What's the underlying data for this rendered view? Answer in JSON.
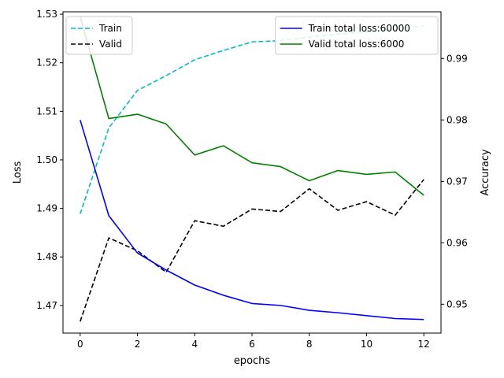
{
  "chart_data": {
    "type": "line",
    "xlabel": "epochs",
    "ylabel_left": "Loss",
    "ylabel_right": "Accuracy",
    "x": [
      0,
      1,
      2,
      3,
      4,
      5,
      6,
      7,
      8,
      9,
      10,
      11,
      12
    ],
    "xlim": [
      -0.6,
      12.6
    ],
    "xticks": [
      0,
      2,
      4,
      6,
      8,
      10,
      12
    ],
    "ylim_left": [
      1.4643,
      1.5305
    ],
    "yticks_left": [
      1.47,
      1.48,
      1.49,
      1.5,
      1.51,
      1.52,
      1.53
    ],
    "ytick_labels_left": [
      "1.47",
      "1.48",
      "1.49",
      "1.50",
      "1.51",
      "1.52",
      "1.53"
    ],
    "ylim_right": [
      0.9453,
      0.9976
    ],
    "yticks_right": [
      0.95,
      0.96,
      0.97,
      0.98,
      0.99
    ],
    "ytick_labels_right": [
      "0.95",
      "0.96",
      "0.97",
      "0.98",
      "0.99"
    ],
    "grid": false,
    "series": [
      {
        "name": "Train",
        "axis": "right",
        "color": "#00bfbf",
        "style": "dashed",
        "values": [
          0.9647,
          0.9787,
          0.9848,
          0.9872,
          0.9898,
          0.9913,
          0.9927,
          0.9929,
          0.9935,
          0.994,
          0.9943,
          0.9948,
          0.9953
        ]
      },
      {
        "name": "Valid",
        "axis": "right",
        "color": "#000000",
        "style": "dashed",
        "values": [
          0.9472,
          0.9608,
          0.9587,
          0.9552,
          0.9636,
          0.9627,
          0.9655,
          0.9651,
          0.9688,
          0.9653,
          0.9667,
          0.9645,
          0.9703
        ]
      },
      {
        "name": "Train total loss:60000",
        "axis": "left",
        "color": "#0000ff",
        "style": "solid",
        "values": [
          1.5082,
          1.4885,
          1.4808,
          1.4773,
          1.4742,
          1.4721,
          1.4704,
          1.47,
          1.469,
          1.4685,
          1.4679,
          1.4673,
          1.4671
        ]
      },
      {
        "name": "Valid total loss:6000",
        "axis": "left",
        "color": "#008000",
        "style": "solid",
        "values": [
          1.5295,
          1.5085,
          1.5094,
          1.5074,
          1.501,
          1.5029,
          1.4994,
          1.4986,
          1.4957,
          1.4978,
          1.497,
          1.4975,
          1.4927
        ]
      }
    ],
    "legends": {
      "left": {
        "placement": "top-left",
        "series": [
          0,
          1
        ]
      },
      "right": {
        "placement": "top-right",
        "series": [
          2,
          3
        ]
      }
    }
  }
}
